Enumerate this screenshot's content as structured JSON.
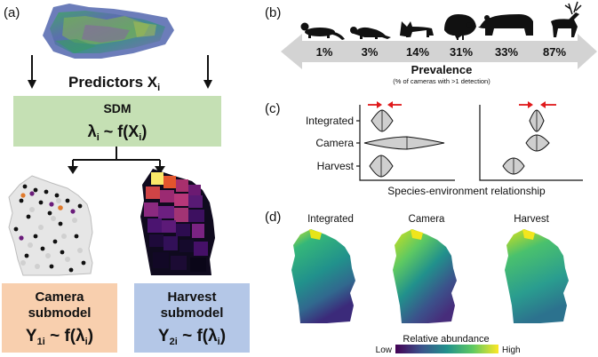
{
  "panels": {
    "a": {
      "letter": "(a)",
      "predictors_label": "Predictors X",
      "predictors_sub": "i",
      "sdm": {
        "title": "SDM",
        "eq_lambda": "λ",
        "eq_lambda_sub": "i",
        "eq_rest": " ~ f(X",
        "eq_x_sub": "i",
        "eq_close": ")"
      },
      "camera_box": {
        "line1": "Camera",
        "line2": "submodel",
        "eq_y": "Y",
        "eq_y_sub": "1i",
        "eq_mid": " ~ f(λ",
        "eq_l_sub": "i",
        "eq_close": ")",
        "color": "#f8cfae"
      },
      "harvest_box": {
        "line1": "Harvest",
        "line2": "submodel",
        "eq_y": "Y",
        "eq_y_sub": "2i",
        "eq_mid": " ~ f(λ",
        "eq_l_sub": "i",
        "eq_close": ")",
        "color": "#b4c7e7"
      },
      "sdm_color": "#c5e0b4"
    },
    "b": {
      "letter": "(b)",
      "animals": [
        {
          "icon": "otter-icon",
          "percent": "1%"
        },
        {
          "icon": "weasel-icon",
          "percent": "3%"
        },
        {
          "icon": "bobcat-icon",
          "percent": "14%"
        },
        {
          "icon": "turkey-icon",
          "percent": "31%"
        },
        {
          "icon": "bear-icon",
          "percent": "33%"
        },
        {
          "icon": "deer-icon",
          "percent": "87%"
        }
      ],
      "title": "Prevalence",
      "subtitle": "(% of cameras with >1 detection)"
    },
    "c": {
      "letter": "(c)",
      "rows": [
        "Integrated",
        "Camera",
        "Harvest"
      ],
      "xlabel": "Species-environment relationship",
      "arrow_color": "#e0191b"
    },
    "d": {
      "letter": "(d)",
      "maps": [
        "Integrated",
        "Camera",
        "Harvest"
      ],
      "legend_title": "Relative abundance",
      "legend_low": "Low",
      "legend_high": "High"
    }
  }
}
